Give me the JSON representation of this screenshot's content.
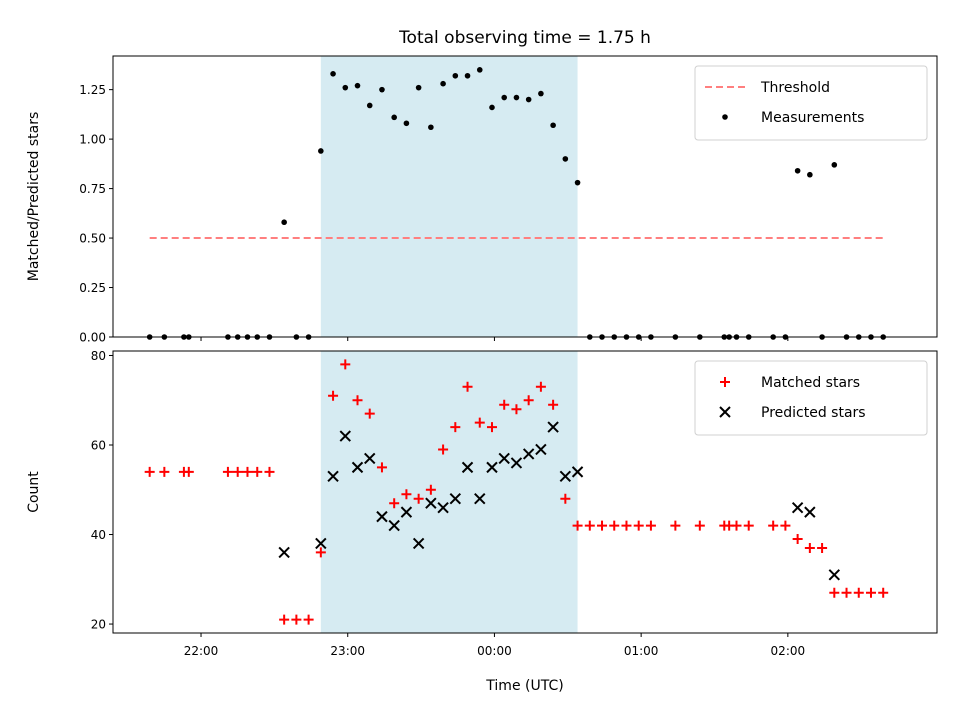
{
  "chart_data": {
    "title": "Total observing time = 1.75 h",
    "xlabel": "Time (UTC)",
    "x_ticks": [
      {
        "t": "22:00",
        "label": "22:00"
      },
      {
        "t": "23:00",
        "label": "23:00"
      },
      {
        "t": "00:00",
        "label": "00:00"
      },
      {
        "t": "01:00",
        "label": "01:00"
      },
      {
        "t": "02:00",
        "label": "02:00"
      }
    ],
    "xlim": [
      "21:24",
      "03:01"
    ],
    "observing_window": {
      "start": "22:49",
      "end": "00:34",
      "color": "#add8e6"
    },
    "panels": [
      {
        "type": "scatter",
        "ylabel": "Matched/Predicted stars",
        "ylim": [
          0,
          1.42
        ],
        "yticks": [
          "0.00",
          "0.25",
          "0.50",
          "0.75",
          "1.00",
          "1.25"
        ],
        "legend_position": "upper right",
        "series": [
          {
            "name": "Threshold",
            "kind": "line",
            "style": "dashed",
            "color": "#ff7f7f",
            "points": [
              [
                "21:39",
                0.5
              ],
              [
                "02:39",
                0.5
              ]
            ]
          },
          {
            "name": "Measurements",
            "kind": "scatter",
            "marker": "dot",
            "color": "#000000",
            "points": [
              [
                "21:39",
                0
              ],
              [
                "21:45",
                0
              ],
              [
                "21:53",
                0
              ],
              [
                "21:55",
                0
              ],
              [
                "22:11",
                0
              ],
              [
                "22:15",
                0
              ],
              [
                "22:19",
                0
              ],
              [
                "22:23",
                0
              ],
              [
                "22:28",
                0
              ],
              [
                "22:34",
                0.58
              ],
              [
                "22:39",
                0
              ],
              [
                "22:44",
                0
              ],
              [
                "22:49",
                0.94
              ],
              [
                "22:54",
                1.33
              ],
              [
                "22:59",
                1.26
              ],
              [
                "23:04",
                1.27
              ],
              [
                "23:09",
                1.17
              ],
              [
                "23:14",
                1.25
              ],
              [
                "23:19",
                1.11
              ],
              [
                "23:24",
                1.08
              ],
              [
                "23:29",
                1.26
              ],
              [
                "23:34",
                1.06
              ],
              [
                "23:39",
                1.28
              ],
              [
                "23:44",
                1.32
              ],
              [
                "23:49",
                1.32
              ],
              [
                "23:54",
                1.35
              ],
              [
                "23:59",
                1.16
              ],
              [
                "00:04",
                1.21
              ],
              [
                "00:09",
                1.21
              ],
              [
                "00:14",
                1.2
              ],
              [
                "00:19",
                1.23
              ],
              [
                "00:24",
                1.07
              ],
              [
                "00:29",
                0.9
              ],
              [
                "00:34",
                0.78
              ],
              [
                "00:39",
                0
              ],
              [
                "00:44",
                0
              ],
              [
                "00:49",
                0
              ],
              [
                "00:54",
                0
              ],
              [
                "00:59",
                0
              ],
              [
                "01:04",
                0
              ],
              [
                "01:14",
                0
              ],
              [
                "01:24",
                0
              ],
              [
                "01:34",
                0
              ],
              [
                "01:36",
                0
              ],
              [
                "01:39",
                0
              ],
              [
                "01:44",
                0
              ],
              [
                "01:54",
                0
              ],
              [
                "01:59",
                0
              ],
              [
                "02:04",
                0.84
              ],
              [
                "02:09",
                0.82
              ],
              [
                "02:14",
                0
              ],
              [
                "02:19",
                0.87
              ],
              [
                "02:24",
                0
              ],
              [
                "02:29",
                0
              ],
              [
                "02:34",
                0
              ],
              [
                "02:39",
                0
              ]
            ]
          }
        ]
      },
      {
        "type": "scatter",
        "ylabel": "Count",
        "ylim": [
          18,
          81
        ],
        "yticks": [
          "20",
          "40",
          "60",
          "80"
        ],
        "legend_position": "upper right",
        "series": [
          {
            "name": "Matched stars",
            "kind": "scatter",
            "marker": "plus",
            "color": "#ff0000",
            "points": [
              [
                "21:39",
                54
              ],
              [
                "21:45",
                54
              ],
              [
                "21:53",
                54
              ],
              [
                "21:55",
                54
              ],
              [
                "22:11",
                54
              ],
              [
                "22:15",
                54
              ],
              [
                "22:19",
                54
              ],
              [
                "22:23",
                54
              ],
              [
                "22:28",
                54
              ],
              [
                "22:34",
                21
              ],
              [
                "22:39",
                21
              ],
              [
                "22:44",
                21
              ],
              [
                "22:49",
                36
              ],
              [
                "22:54",
                71
              ],
              [
                "22:59",
                78
              ],
              [
                "23:04",
                70
              ],
              [
                "23:09",
                67
              ],
              [
                "23:14",
                55
              ],
              [
                "23:19",
                47
              ],
              [
                "23:24",
                49
              ],
              [
                "23:29",
                48
              ],
              [
                "23:34",
                50
              ],
              [
                "23:39",
                59
              ],
              [
                "23:44",
                64
              ],
              [
                "23:49",
                73
              ],
              [
                "23:54",
                65
              ],
              [
                "23:59",
                64
              ],
              [
                "00:04",
                69
              ],
              [
                "00:09",
                68
              ],
              [
                "00:14",
                70
              ],
              [
                "00:19",
                73
              ],
              [
                "00:24",
                69
              ],
              [
                "00:29",
                48
              ],
              [
                "00:34",
                42
              ],
              [
                "00:39",
                42
              ],
              [
                "00:44",
                42
              ],
              [
                "00:49",
                42
              ],
              [
                "00:54",
                42
              ],
              [
                "00:59",
                42
              ],
              [
                "01:04",
                42
              ],
              [
                "01:14",
                42
              ],
              [
                "01:24",
                42
              ],
              [
                "01:34",
                42
              ],
              [
                "01:36",
                42
              ],
              [
                "01:39",
                42
              ],
              [
                "01:44",
                42
              ],
              [
                "01:54",
                42
              ],
              [
                "01:59",
                42
              ],
              [
                "02:04",
                39
              ],
              [
                "02:09",
                37
              ],
              [
                "02:14",
                37
              ],
              [
                "02:19",
                27
              ],
              [
                "02:24",
                27
              ],
              [
                "02:29",
                27
              ],
              [
                "02:34",
                27
              ],
              [
                "02:39",
                27
              ]
            ]
          },
          {
            "name": "Predicted stars",
            "kind": "scatter",
            "marker": "x",
            "color": "#000000",
            "points": [
              [
                "22:34",
                36
              ],
              [
                "22:49",
                38
              ],
              [
                "22:54",
                53
              ],
              [
                "22:59",
                62
              ],
              [
                "23:04",
                55
              ],
              [
                "23:09",
                57
              ],
              [
                "23:14",
                44
              ],
              [
                "23:19",
                42
              ],
              [
                "23:24",
                45
              ],
              [
                "23:29",
                38
              ],
              [
                "23:34",
                47
              ],
              [
                "23:39",
                46
              ],
              [
                "23:44",
                48
              ],
              [
                "23:49",
                55
              ],
              [
                "23:54",
                48
              ],
              [
                "23:59",
                55
              ],
              [
                "00:04",
                57
              ],
              [
                "00:09",
                56
              ],
              [
                "00:14",
                58
              ],
              [
                "00:19",
                59
              ],
              [
                "00:24",
                64
              ],
              [
                "00:29",
                53
              ],
              [
                "00:34",
                54
              ],
              [
                "02:04",
                46
              ],
              [
                "02:09",
                45
              ],
              [
                "02:19",
                31
              ]
            ]
          }
        ]
      }
    ]
  }
}
